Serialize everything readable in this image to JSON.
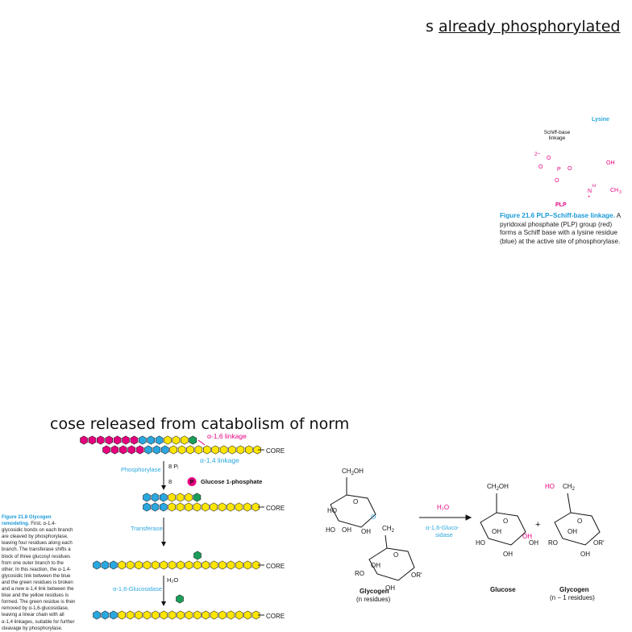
{
  "top_snippet": {
    "prefix": "s ",
    "underlined": "already phosphorylated"
  },
  "plp": {
    "lysine_label": "Lysine",
    "schiff_label_1": "Schiff-base",
    "schiff_label_2": "linkage",
    "plp_label": "PLP",
    "charge": "2−",
    "caption_title": "Figure 21.6  PLP–Schiff-base linkage.",
    "caption_body": "A pyridoxal phosphate (PLP) group (red) forms a Schiff base with a lysine residue (blue) at the active site of phosphorylase.",
    "colors": {
      "lysine": "#2aa7df",
      "plp": "#e5007e"
    }
  },
  "mid_snippet": "cose released from catabolism of norm",
  "remodel": {
    "alpha16": "α-1,6 linkage",
    "alpha14": "α-1,4 linkage",
    "core": "CORE",
    "phosphorylase": "Phosphorylase",
    "pi_in": "8 Pᵢ",
    "eight": "8",
    "p_symbol": "P",
    "g1p": "Glucose 1-phosphate",
    "transferase": "Transferase",
    "glucosidase": "α-1,6-Glucosidase",
    "h2o": "H₂O",
    "caption_title": "Figure 21.8  Glycogen remodeling.",
    "caption_body": "First, α-1,4-glycosidic bonds on each branch are cleaved by phosphorylase, leaving four residues along each branch. The transferase shifts a block of three glucosyl residues from one outer branch to the other. In this reaction, the α-1,4-glycosidic link between the blue and the green residues is broken and a new α-1,4 link between the blue and the yellow residues is formed. The green residue is then removed by α-1,6-glucosidase, leaving a linear chain with all α-1,4 linkages, suitable for further cleavage by phosphorylase.",
    "colors": {
      "magenta": "#e5007e",
      "blue": "#2aa7df",
      "yellow": "#ffe600",
      "green": "#1a9e5a"
    }
  },
  "hydrolysis": {
    "h2o": "H₂O",
    "enzyme1": "α-1,6-Gluco-",
    "enzyme2": "sidase",
    "glycogen_n": "Glycogen",
    "n_residues": "(n residues)",
    "glucose": "Glucose",
    "plus": "+",
    "glycogen_n1": "Glycogen",
    "n1_residues": "(n − 1 residues)"
  }
}
